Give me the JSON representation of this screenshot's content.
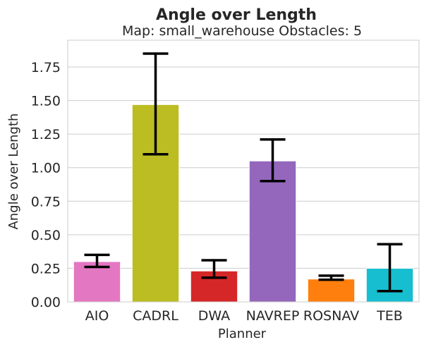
{
  "chart_data": {
    "type": "bar",
    "title": "Angle over Length",
    "subtitle": "Map: small_warehouse Obstacles: 5",
    "xlabel": "Planner",
    "ylabel": "Angle over Length",
    "categories": [
      "AIO",
      "CADRL",
      "DWA",
      "NAVREP",
      "ROSNAV",
      "TEB"
    ],
    "values": [
      0.3,
      1.47,
      0.23,
      1.05,
      0.17,
      0.25
    ],
    "error_low": [
      0.26,
      1.1,
      0.18,
      0.9,
      0.165,
      0.08
    ],
    "error_high": [
      0.35,
      1.85,
      0.31,
      1.21,
      0.195,
      0.43
    ],
    "colors": [
      "#e377c2",
      "#bcbd22",
      "#d62728",
      "#9467bd",
      "#ff7f0e",
      "#17becf"
    ],
    "ylim": [
      0,
      1.95
    ],
    "yticks": [
      "0.00",
      "0.25",
      "0.50",
      "0.75",
      "1.00",
      "1.25",
      "1.50",
      "1.75"
    ],
    "grid": true
  }
}
